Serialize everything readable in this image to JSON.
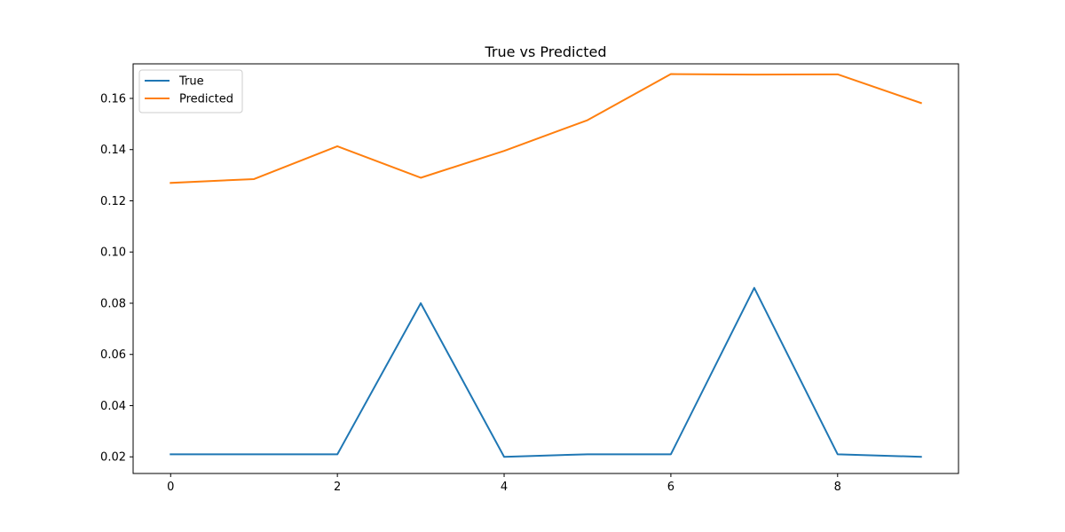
{
  "chart_data": {
    "type": "line",
    "title": "True vs Predicted",
    "xlabel": "",
    "ylabel": "",
    "x": [
      0,
      1,
      2,
      3,
      4,
      5,
      6,
      7,
      8,
      9
    ],
    "xlim": [
      -0.45,
      9.45
    ],
    "ylim": [
      0.0135,
      0.1735
    ],
    "xticks": [
      0,
      2,
      4,
      6,
      8
    ],
    "yticks": [
      0.02,
      0.04,
      0.06,
      0.08,
      0.1,
      0.12,
      0.14,
      0.16
    ],
    "xtick_labels": [
      "0",
      "2",
      "4",
      "6",
      "8"
    ],
    "ytick_labels": [
      "0.02",
      "0.04",
      "0.06",
      "0.08",
      "0.10",
      "0.12",
      "0.14",
      "0.16"
    ],
    "grid": false,
    "legend_position": "top-left",
    "series": [
      {
        "name": "True",
        "color": "#1f77b4",
        "values": [
          0.021,
          0.021,
          0.021,
          0.08,
          0.02,
          0.021,
          0.021,
          0.086,
          0.021,
          0.02
        ]
      },
      {
        "name": "Predicted",
        "color": "#ff7f0e",
        "values": [
          0.127,
          0.1285,
          0.1413,
          0.129,
          0.1395,
          0.1515,
          0.1695,
          0.1693,
          0.1694,
          0.1582
        ]
      }
    ]
  }
}
